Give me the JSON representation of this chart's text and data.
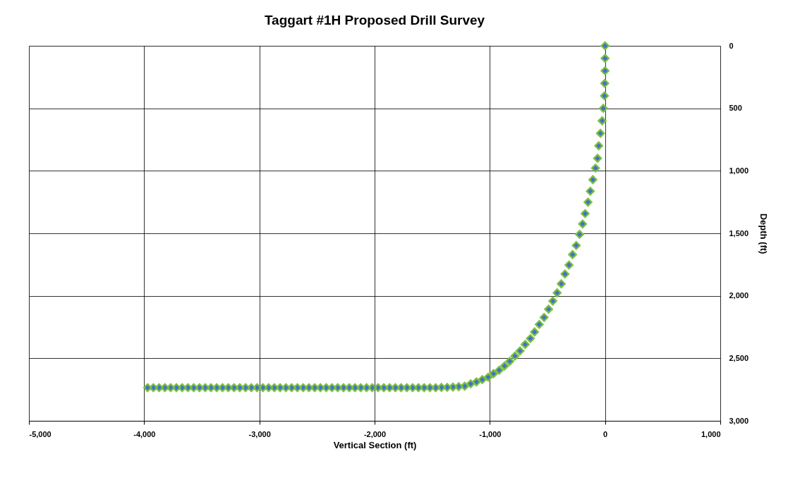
{
  "chart_data": {
    "type": "scatter",
    "title": "Taggart #1H Proposed Drill Survey",
    "xlabel": "Vertical Section (ft)",
    "ylabel": "Depth (ft)",
    "x": [
      0,
      0,
      0,
      -3,
      -5,
      -15,
      -25,
      -40,
      -55,
      -65,
      -83,
      -106,
      -128,
      -148,
      -173,
      -195,
      -221,
      -250,
      -282,
      -313,
      -348,
      -380,
      -416,
      -453,
      -490,
      -529,
      -571,
      -612,
      -648,
      -693,
      -738,
      -782,
      -827,
      -872,
      -919,
      -968,
      -1014,
      -1065,
      -1116,
      -1166,
      -1218,
      -1270,
      -1320,
      -1370,
      -1420,
      -1470,
      -1520,
      -1570,
      -1620,
      -1670,
      -1720,
      -1770,
      -1820,
      -1870,
      -1920,
      -1970,
      -2020,
      -2070,
      -2120,
      -2170,
      -2220,
      -2270,
      -2320,
      -2370,
      -2420,
      -2470,
      -2520,
      -2570,
      -2620,
      -2670,
      -2720,
      -2770,
      -2820,
      -2870,
      -2920,
      -2970,
      -3020,
      -3070,
      -3120,
      -3170,
      -3220,
      -3270,
      -3320,
      -3370,
      -3420,
      -3470,
      -3520,
      -3570,
      -3620,
      -3670,
      -3720,
      -3770,
      -3820,
      -3870,
      -3920,
      -3970
    ],
    "series": [
      {
        "color": "#4472c4",
        "values": [
          0,
          100,
          200,
          300,
          400,
          500,
          600,
          700,
          800,
          900,
          978,
          1071,
          1163,
          1251,
          1342,
          1425,
          1508,
          1597,
          1670,
          1754,
          1826,
          1904,
          1976,
          2042,
          2107,
          2173,
          2229,
          2289,
          2342,
          2389,
          2441,
          2482,
          2524,
          2561,
          2595,
          2623,
          2651,
          2670,
          2689,
          2704,
          2723,
          2727,
          2730,
          2732,
          2733,
          2735,
          2735,
          2735,
          2735,
          2735,
          2735,
          2735,
          2735,
          2735,
          2735,
          2735,
          2735,
          2735,
          2735,
          2735,
          2735,
          2735,
          2735,
          2735,
          2735,
          2735,
          2735,
          2735,
          2735,
          2735,
          2735,
          2735,
          2735,
          2735,
          2735,
          2735,
          2735,
          2735,
          2735,
          2735,
          2735,
          2735,
          2735,
          2735,
          2735,
          2735,
          2735,
          2735,
          2735,
          2735,
          2735,
          2735,
          2735,
          2735,
          2735,
          2735
        ]
      }
    ],
    "xlim": [
      -5000,
      1000
    ],
    "xticks": [
      {
        "value": -5000,
        "label": "-5,000"
      },
      {
        "value": -4000,
        "label": "-4,000"
      },
      {
        "value": -3000,
        "label": "-3,000"
      },
      {
        "value": -2000,
        "label": "-2,000"
      },
      {
        "value": -1000,
        "label": "-1,000"
      },
      0,
      {
        "value": 1000,
        "label": "1,000"
      }
    ],
    "ylim": [
      3000,
      0
    ],
    "yticks": [
      0,
      500,
      {
        "value": 1000,
        "label": "1,000"
      },
      {
        "value": 1500,
        "label": "1,500"
      },
      {
        "value": 2000,
        "label": "2,000"
      },
      {
        "value": 2500,
        "label": "2,500"
      },
      {
        "value": 3000,
        "label": "3,000"
      }
    ],
    "grid": true,
    "legend": false,
    "marker": "diamond"
  }
}
